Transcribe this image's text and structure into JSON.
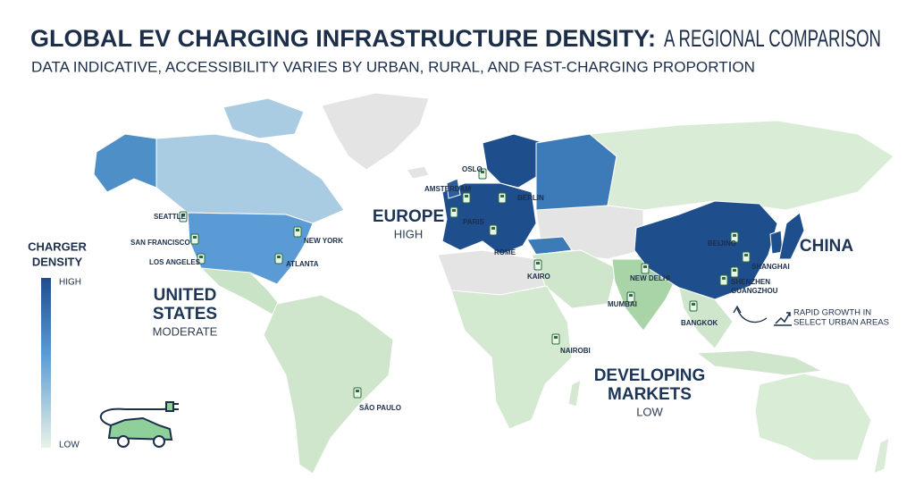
{
  "title": {
    "bold": "GLOBAL EV CHARGING INFRASTRUCTURE DENSITY:",
    "rest": "A REGIONAL COMPARISON"
  },
  "subtitle": "DATA INDICATIVE, ACCESSIBILITY VARIES BY URBAN, RURAL, AND FAST-CHARGING PROPORTION",
  "legend": {
    "title": [
      "CHARGER",
      "DENSITY"
    ],
    "high": "HIGH",
    "low": "LOW"
  },
  "regions": {
    "united_states": {
      "name": [
        "UNITED",
        "STATES"
      ],
      "level": "MODERATE"
    },
    "europe": {
      "name": "EUROPE",
      "level": "HIGH"
    },
    "china": {
      "name": "CHINA"
    },
    "developing": {
      "name": [
        "DEVELOPING",
        "MARKETS"
      ],
      "level": "LOW"
    }
  },
  "annotation": [
    "RAPID GROWTH IN",
    "SELECT URBAN AREAS"
  ],
  "cities": [
    "SEATTLE",
    "SAN FRANCISCO",
    "LOS ANGELES",
    "NEW YORK",
    "ATLANTA",
    "OSLO",
    "AMSTERDAM",
    "BERLIN",
    "PARIS",
    "ROME",
    "KAIRO",
    "NEW DELHI",
    "MUMBAI",
    "BEIJING",
    "SHANGHAI",
    "SHENZHEN",
    "GUANGZHOU",
    "BANGKOK",
    "NAIROBI",
    "SÃO PAULO"
  ]
}
